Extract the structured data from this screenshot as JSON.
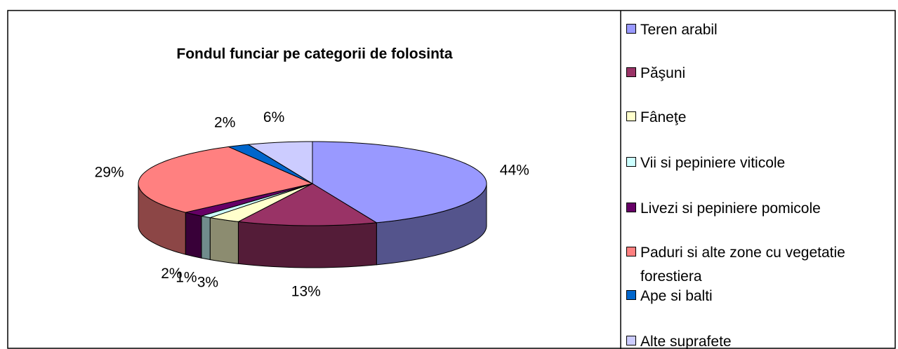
{
  "chart_data": {
    "type": "pie",
    "title": "Fondul funciar pe categorii de folosinta",
    "categories": [
      "Teren arabil",
      "Păşuni",
      "Fâneţe",
      "Vii si pepiniere viticole",
      "Livezi si pepiniere pomicole",
      "Paduri si alte zone cu vegetatie forestiera",
      "Ape si balti",
      "Alte suprafete"
    ],
    "values": [
      44,
      13,
      3,
      1,
      2,
      29,
      2,
      6
    ],
    "value_labels": [
      "44%",
      "13%",
      "3%",
      "1%",
      "2%",
      "29%",
      "2%",
      "6%"
    ],
    "colors": [
      "#9999ff",
      "#993366",
      "#ffffcc",
      "#ccffff",
      "#660066",
      "#ff8080",
      "#0066cc",
      "#ccccff"
    ],
    "legend": "right"
  }
}
